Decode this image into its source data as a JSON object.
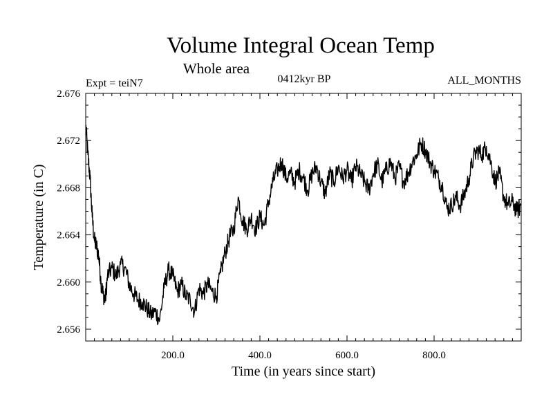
{
  "colors": {
    "background": "#ffffff",
    "foreground": "#000000"
  },
  "chart_data": {
    "type": "line",
    "title": "Volume Integral Ocean Temp",
    "subtitle": "Whole area",
    "expt_label": "Expt = teiN7",
    "period_label": "0412kyr BP",
    "months_label": "ALL_MONTHS",
    "xlabel": "Time (in years since start)",
    "ylabel": "Temperature (in C)",
    "xlim": [
      0,
      1000
    ],
    "ylim": [
      2.655,
      2.676
    ],
    "x_ticks": [
      200,
      400,
      600,
      800
    ],
    "x_tick_labels": [
      "200.0",
      "400.0",
      "600.0",
      "800.0"
    ],
    "y_ticks": [
      2.656,
      2.66,
      2.664,
      2.668,
      2.672,
      2.676
    ],
    "y_tick_labels": [
      "2.656",
      "2.660",
      "2.664",
      "2.668",
      "2.672",
      "2.676"
    ],
    "series": [
      {
        "name": "Temperature",
        "x": [
          0,
          5,
          10,
          15,
          20,
          25,
          30,
          35,
          40,
          45,
          50,
          60,
          70,
          80,
          90,
          100,
          110,
          120,
          130,
          140,
          150,
          160,
          170,
          180,
          190,
          200,
          210,
          220,
          230,
          240,
          250,
          260,
          270,
          280,
          290,
          300,
          310,
          320,
          330,
          340,
          350,
          360,
          370,
          380,
          390,
          400,
          410,
          420,
          430,
          440,
          450,
          460,
          470,
          480,
          490,
          500,
          510,
          520,
          530,
          540,
          550,
          560,
          570,
          580,
          590,
          600,
          610,
          620,
          630,
          640,
          650,
          660,
          670,
          680,
          690,
          700,
          710,
          720,
          730,
          740,
          750,
          760,
          770,
          780,
          790,
          800,
          810,
          820,
          830,
          840,
          850,
          860,
          870,
          880,
          890,
          900,
          910,
          920,
          930,
          940,
          950,
          960,
          970,
          980,
          990,
          1000
        ],
        "values": [
          2.6733,
          2.6708,
          2.6688,
          2.6655,
          2.6635,
          2.663,
          2.6622,
          2.66,
          2.659,
          2.6585,
          2.6605,
          2.6612,
          2.6605,
          2.6615,
          2.6612,
          2.6598,
          2.659,
          2.6585,
          2.6583,
          2.6578,
          2.6572,
          2.6575,
          2.6568,
          2.6595,
          2.661,
          2.6605,
          2.6592,
          2.6598,
          2.6588,
          2.6585,
          2.6575,
          2.6595,
          2.659,
          2.6598,
          2.6592,
          2.6588,
          2.6608,
          2.6625,
          2.6638,
          2.6645,
          2.6672,
          2.6652,
          2.6645,
          2.6655,
          2.6645,
          2.6655,
          2.6648,
          2.6668,
          2.6685,
          2.6695,
          2.6702,
          2.6688,
          2.6692,
          2.6685,
          2.6695,
          2.6688,
          2.6678,
          2.6692,
          2.6698,
          2.6685,
          2.6675,
          2.6692,
          2.6685,
          2.6698,
          2.6688,
          2.6695,
          2.6685,
          2.6698,
          2.6692,
          2.6685,
          2.6678,
          2.6692,
          2.67,
          2.6685,
          2.6695,
          2.6702,
          2.6688,
          2.6698,
          2.6685,
          2.6692,
          2.6702,
          2.6708,
          2.6718,
          2.6712,
          2.6702,
          2.6695,
          2.6688,
          2.668,
          2.6662,
          2.6665,
          2.6672,
          2.6665,
          2.6675,
          2.6688,
          2.6705,
          2.6712,
          2.6708,
          2.6715,
          2.6702,
          2.6685,
          2.6692,
          2.6672,
          2.6665,
          2.6668,
          2.666,
          2.6665
        ]
      }
    ]
  }
}
